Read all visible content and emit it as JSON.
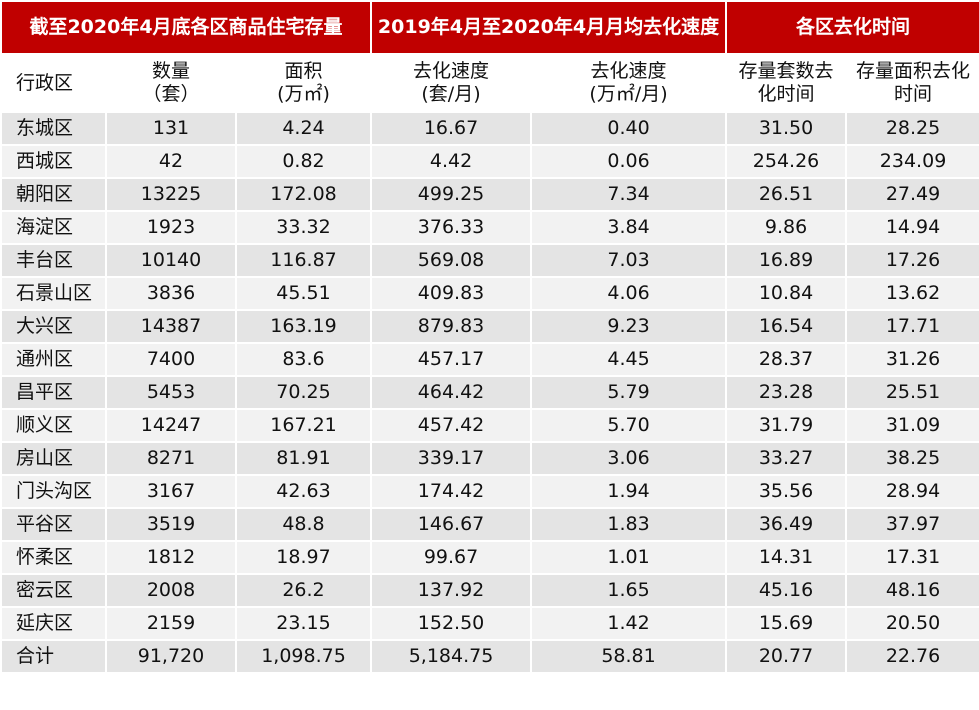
{
  "table": {
    "groups": [
      "截至2020年4月底各区商品住宅存量",
      "2019年4月至2020年4月月均去化速度",
      "各区去化时间"
    ],
    "columns": [
      [
        "行政区"
      ],
      [
        "数量",
        "（套）"
      ],
      [
        "面积",
        "(万㎡)"
      ],
      [
        "去化速度",
        "(套/月)"
      ],
      [
        "去化速度",
        "(万㎡/月)"
      ],
      [
        "存量套数去",
        "化时间"
      ],
      [
        "存量面积去化",
        "时间"
      ]
    ],
    "rows": [
      [
        "东城区",
        "131",
        "4.24",
        "16.67",
        "0.40",
        "31.50",
        "28.25"
      ],
      [
        "西城区",
        "42",
        "0.82",
        "4.42",
        "0.06",
        "254.26",
        "234.09"
      ],
      [
        "朝阳区",
        "13225",
        "172.08",
        "499.25",
        "7.34",
        "26.51",
        "27.49"
      ],
      [
        "海淀区",
        "1923",
        "33.32",
        "376.33",
        "3.84",
        "9.86",
        "14.94"
      ],
      [
        "丰台区",
        "10140",
        "116.87",
        "569.08",
        "7.03",
        "16.89",
        "17.26"
      ],
      [
        "石景山区",
        "3836",
        "45.51",
        "409.83",
        "4.06",
        "10.84",
        "13.62"
      ],
      [
        "大兴区",
        "14387",
        "163.19",
        "879.83",
        "9.23",
        "16.54",
        "17.71"
      ],
      [
        "通州区",
        "7400",
        "83.6",
        "457.17",
        "4.45",
        "28.37",
        "31.26"
      ],
      [
        "昌平区",
        "5453",
        "70.25",
        "464.42",
        "5.79",
        "23.28",
        "25.51"
      ],
      [
        "顺义区",
        "14247",
        "167.21",
        "457.42",
        "5.70",
        "31.79",
        "31.09"
      ],
      [
        "房山区",
        "8271",
        "81.91",
        "339.17",
        "3.06",
        "33.27",
        "38.25"
      ],
      [
        "门头沟区",
        "3167",
        "42.63",
        "174.42",
        "1.94",
        "35.56",
        "28.94"
      ],
      [
        "平谷区",
        "3519",
        "48.8",
        "146.67",
        "1.83",
        "36.49",
        "37.97"
      ],
      [
        "怀柔区",
        "1812",
        "18.97",
        "99.67",
        "1.01",
        "14.31",
        "17.31"
      ],
      [
        "密云区",
        "2008",
        "26.2",
        "137.92",
        "1.65",
        "45.16",
        "48.16"
      ],
      [
        "延庆区",
        "2159",
        "23.15",
        "152.50",
        "1.42",
        "15.69",
        "20.50"
      ],
      [
        "合计",
        "91,720",
        "1,098.75",
        "5,184.75",
        "58.81",
        "20.77",
        "22.76"
      ]
    ]
  }
}
